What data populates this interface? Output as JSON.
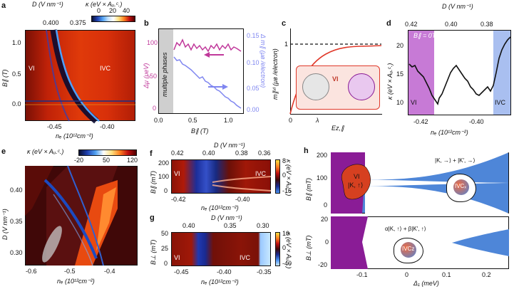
{
  "panel_labels": {
    "a": "a",
    "b": "b",
    "c": "c",
    "d": "d",
    "e": "e",
    "f": "f",
    "g": "g",
    "h": "h"
  },
  "a": {
    "top_axis_label": "D (V nm⁻¹)",
    "top_ticks": [
      "0.400",
      "0.375"
    ],
    "colorbar_label": "κ (eV × Aᵤ.ᶜ.)",
    "colorbar_ticks": [
      "0",
      "20",
      "40"
    ],
    "y_label": "B∥ (T)",
    "y_ticks": [
      "1.0",
      "0.5",
      "0.0"
    ],
    "x_label": "nₑ (10¹²cm⁻²)",
    "x_ticks": [
      "-0.45",
      "-0.40"
    ],
    "region_left": "VI",
    "region_right": "IVC"
  },
  "b": {
    "y_left_label": "Δμ (μeV)",
    "y_left_ticks": [
      "100",
      "50",
      "0"
    ],
    "y_right_label": "Δ m∥ (μʙ /electron)",
    "y_right_ticks": [
      "0.15",
      "0.10",
      "0.05",
      "0.00"
    ],
    "shaded_label": "multiple phases",
    "x_label": "B∥ (T)",
    "x_ticks": [
      "0.0",
      "0.5",
      "1.0"
    ],
    "colors": {
      "mu": "#c0389a",
      "m": "#7f86f0"
    }
  },
  "c": {
    "y_label": "m∥ᵛᴵ (μʙ /electron)",
    "y_tick": "1",
    "x_ticks": [
      "0",
      "λ"
    ],
    "x_label": "Eᴢ,∥",
    "inset_label": "VI",
    "curve_color": "#e0392a"
  },
  "d": {
    "top_axis_label": "D (V nm⁻¹)",
    "top_ticks": [
      "0.42",
      "0.40",
      "0.38"
    ],
    "legend": "B∥ = 0T",
    "y_label": "κ (eV × Aᵤ.ᶜ.)",
    "y_ticks": [
      "20",
      "15",
      "10"
    ],
    "x_label": "nₑ (10¹²cm⁻²)",
    "x_ticks": [
      "-0.42",
      "-0.40"
    ],
    "region_left": "VI",
    "region_right": "IVC",
    "colors": {
      "vi": "#c77ad6",
      "ivc": "#a9bff0"
    }
  },
  "e": {
    "colorbar_label": "κ (eV × Aᵤ.ᶜ.)",
    "colorbar_ticks": [
      "-20",
      "50",
      "120"
    ],
    "y_label": "D (V nm⁻¹)",
    "y_ticks": [
      "0.40",
      "0.35",
      "0.30"
    ],
    "x_label": "nₑ (10¹²cm⁻²)",
    "x_ticks": [
      "-0.6",
      "-0.5",
      "-0.4"
    ]
  },
  "f": {
    "top_axis_label": "D (V nm⁻¹)",
    "top_ticks": [
      "0.42",
      "0.40",
      "0.38",
      "0.36"
    ],
    "y_label": "B∥ (mT)",
    "y_ticks": [
      "200",
      "100",
      "0"
    ],
    "x_label": "nₑ (10¹²cm⁻²)",
    "x_ticks": [
      "-0.42",
      "-0.40"
    ],
    "region_left": "VI",
    "region_right": "IVC",
    "colorbar_ticks": [
      "8",
      "0",
      "-15"
    ],
    "colorbar_label": "κ (eV × Aᵤ.ᶜ.)"
  },
  "g": {
    "top_axis_label": "D (V nm⁻¹)",
    "top_ticks": [
      "0.40",
      "0.35",
      "0.30"
    ],
    "y_label": "B⊥ (mT)",
    "y_ticks": [
      "50",
      "25",
      "0"
    ],
    "x_label": "nₑ (10¹²cm⁻²)",
    "x_ticks": [
      "-0.45",
      "-0.40",
      "-0.35"
    ],
    "region_left": "VI",
    "region_right": "IVC",
    "colorbar_ticks": [
      "10",
      "0",
      "-40"
    ],
    "colorbar_label": "κ (eV × Aᵤ.ᶜ.)"
  },
  "h": {
    "top_y_label": "B∥ (mT)",
    "top_y_ticks": [
      "200",
      "100",
      "0"
    ],
    "bottom_y_label": "B⊥ (mT)",
    "bottom_y_ticks": [
      "20",
      "0",
      "-20"
    ],
    "x_label": "Δ₁ (meV)",
    "x_ticks": [
      "-0.1",
      "0",
      "0.1",
      "0.2"
    ],
    "vi_label": "VI",
    "vi_state": "|K, ↑⟩",
    "ivc_x_label": "IVCₓ",
    "ivc_x_state": "|K, →⟩ + |K′, →⟩",
    "ivc_z_label": "IVCᴢ",
    "ivc_z_state": "α|K, ↑⟩ + β|K′, ↑⟩",
    "colors": {
      "purple": "#8a1c96",
      "blue": "#4e86d8",
      "vi": "#d64020"
    }
  }
}
